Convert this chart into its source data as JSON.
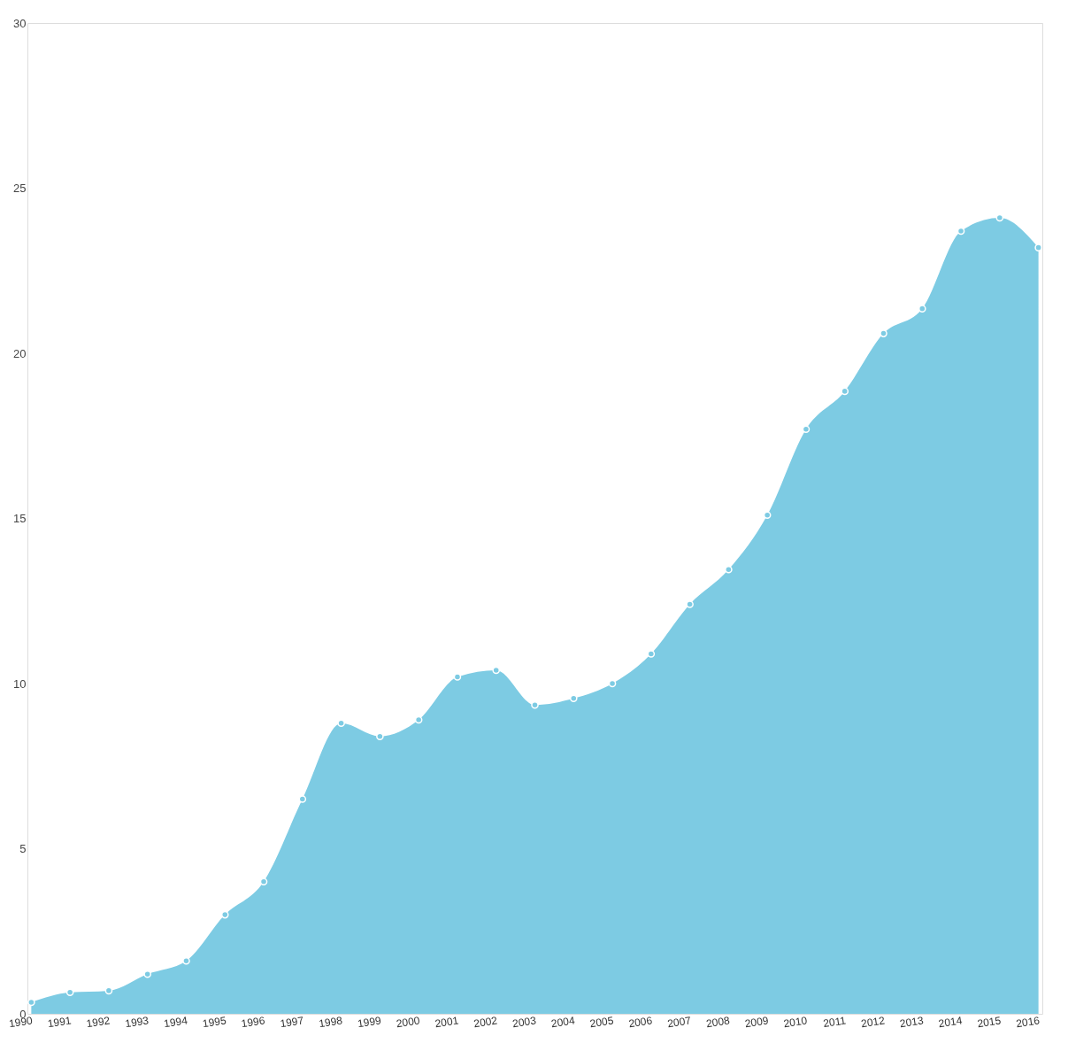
{
  "chart_data": {
    "type": "area",
    "categories": [
      "1990",
      "1991",
      "1992",
      "1993",
      "1994",
      "1995",
      "1996",
      "1997",
      "1998",
      "1999",
      "2000",
      "2001",
      "2002",
      "2003",
      "2004",
      "2005",
      "2006",
      "2007",
      "2008",
      "2009",
      "2010",
      "2011",
      "2012",
      "2013",
      "2014",
      "2015",
      "2016"
    ],
    "series": [
      {
        "color": "#7dcbe3",
        "values": [
          0.35,
          0.65,
          0.7,
          1.2,
          1.6,
          3.0,
          4.0,
          6.5,
          8.8,
          8.4,
          8.9,
          10.2,
          10.4,
          9.35,
          9.55,
          10.0,
          10.9,
          12.4,
          13.45,
          15.1,
          17.7,
          18.85,
          20.6,
          21.35,
          23.7,
          24.1,
          23.2
        ]
      }
    ],
    "ylim": [
      0,
      30
    ],
    "yticks": [
      0,
      5,
      10,
      15,
      20,
      25,
      30
    ],
    "grid": false,
    "marker": "circle"
  }
}
